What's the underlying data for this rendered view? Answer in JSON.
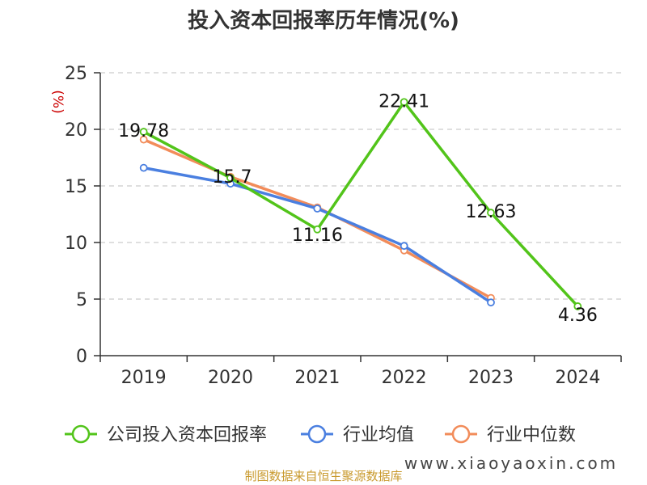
{
  "chart_data": {
    "type": "line",
    "title": "投入资本回报率历年情况(%)",
    "ylabel": "(%)",
    "categories": [
      "2019",
      "2020",
      "2021",
      "2022",
      "2023",
      "2024"
    ],
    "ylim": [
      0,
      25
    ],
    "yticks": [
      0,
      5,
      10,
      15,
      20,
      25
    ],
    "grid": true,
    "legend_position": "bottom",
    "series": [
      {
        "name": "公司投入资本回报率",
        "color": "#52c41a",
        "values": [
          19.78,
          15.7,
          11.16,
          22.41,
          12.63,
          4.36
        ],
        "labels": [
          "19.78",
          "15.7",
          "11.16",
          "22.41",
          "12.63",
          "4.36"
        ]
      },
      {
        "name": "行业均值",
        "color": "#4a7fe0",
        "values": [
          16.6,
          15.2,
          13.0,
          9.7,
          4.7,
          null
        ]
      },
      {
        "name": "行业中位数",
        "color": "#f28c5a",
        "values": [
          19.1,
          15.8,
          13.1,
          9.3,
          5.1,
          null
        ]
      }
    ]
  },
  "source_text": "制图数据来自恒生聚源数据库",
  "watermark_text": "www.xiaoyaoxin.com"
}
